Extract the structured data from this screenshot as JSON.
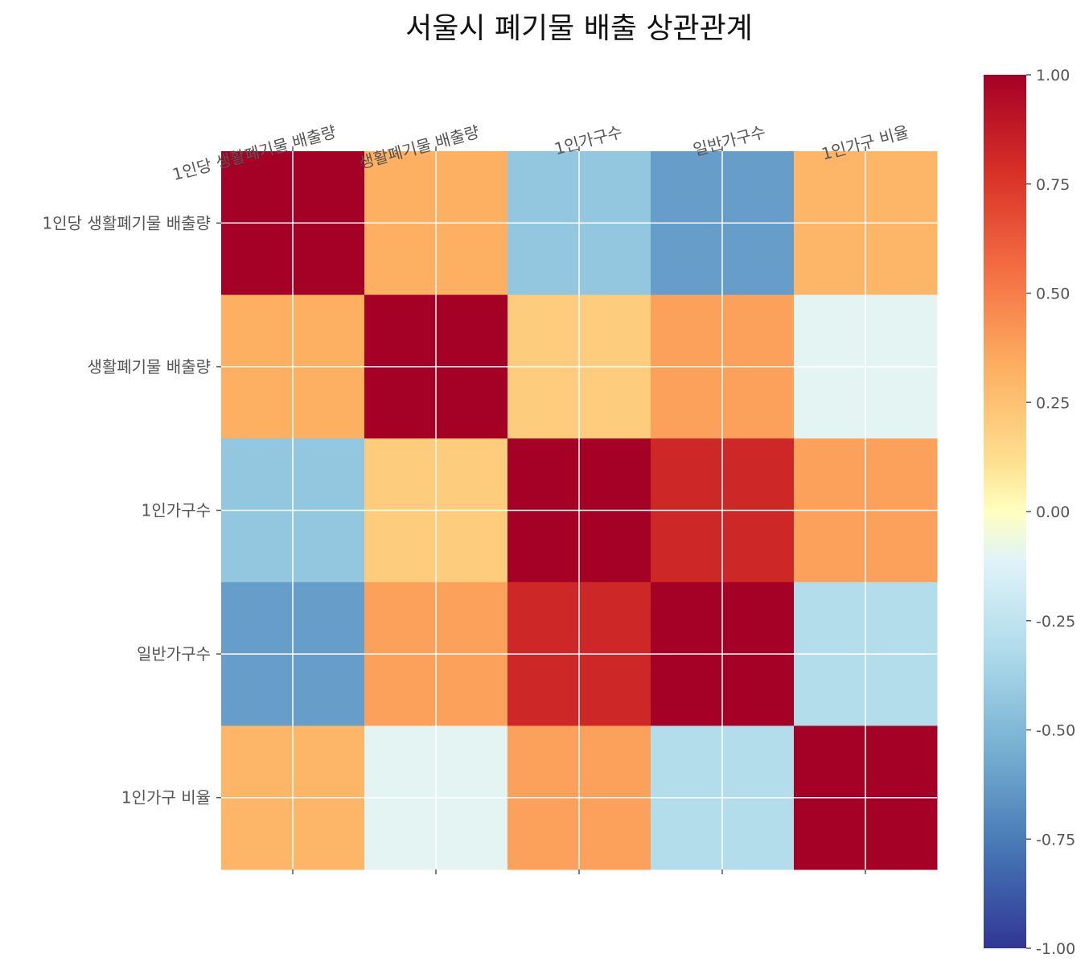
{
  "chart_data": {
    "type": "heatmap",
    "title": "서울시 폐기물 배출 상관관계",
    "labels": [
      "1인당 생활폐기물 배출량",
      "생활폐기물 배출량",
      "1인가구수",
      "일반가구수",
      "1인가구 비율"
    ],
    "matrix": [
      [
        1.0,
        0.33,
        -0.43,
        -0.62,
        0.3
      ],
      [
        0.33,
        1.0,
        0.2,
        0.38,
        -0.1
      ],
      [
        -0.43,
        0.2,
        1.0,
        0.82,
        0.38
      ],
      [
        -0.62,
        0.38,
        0.82,
        1.0,
        -0.3
      ],
      [
        0.3,
        -0.1,
        0.38,
        -0.3,
        1.0
      ]
    ],
    "colormap": "RdYlBu_r",
    "vmin": -1.0,
    "vmax": 1.0,
    "colorbar_ticks": [
      "1.00",
      "0.75",
      "0.50",
      "0.25",
      "0.00",
      "-0.25",
      "-0.50",
      "-0.75",
      "-1.00"
    ],
    "grid": true,
    "xlabel": "",
    "ylabel": ""
  }
}
